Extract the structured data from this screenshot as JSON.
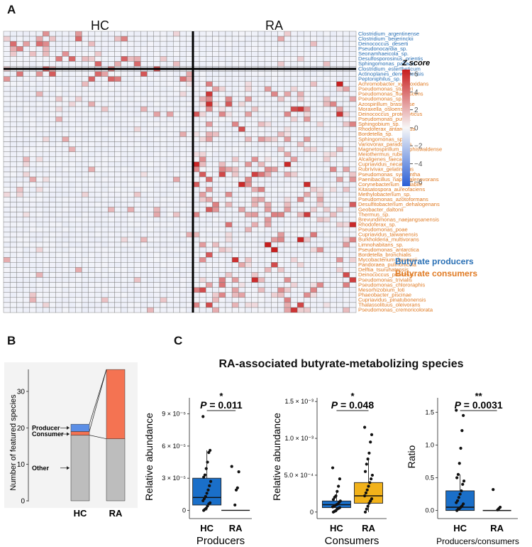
{
  "panel_a": {
    "letter": "A",
    "group_hc": "HC",
    "group_ra": "RA",
    "producers": [
      "Clostridium_argentinense",
      "Clostridium_beijerinckii",
      "Deinococcus_deserti",
      "Pseudonocardia_sp.",
      "Seonamhaeicola_sp.",
      "Desulfosporosinus_orientis",
      "Sphingomonas_pallacis",
      "Clostridium_estertheticum",
      "Actinoplanes_derwentensis",
      "Peptoniphilus_sp."
    ],
    "consumers": [
      "Achromobacter_xylosoxidans",
      "Pseudomonas_stutzeri",
      "Pseudomonas_fluorescens",
      "Pseudomonas_sp.",
      "Azospirillum_brasilense",
      "Moraxella_osloensis",
      "Deinococcus_proteolyticus",
      "Pseudomonas_putida",
      "Sphingobium_sp.",
      "Rhodoferax_antarcticus",
      "Bordetella_sp.",
      "Sphingomonas_sp.",
      "Variovorax_paradoxus",
      "Magnetospirillum_gryphiswaldense",
      "Meiothermus_ruber",
      "Alcaligenes_faecalis",
      "Cupriavidus_necator",
      "Rubrivivax_gelatinosus",
      "Pseudomonas_synxantha",
      "Paenibacillus_naphthalenovorans",
      "Corynebacterium_variabile",
      "Kitasatospora_aureofaciens",
      "Methylobacterium_sp.",
      "Pseudomonas_azotoformans",
      "Desulfitobacterium_dehalogenans",
      "Geobacter_daltonii",
      "Thermus_sp.",
      "Brevundimonas_naejangsanensis",
      "Rhodoferax_sp.",
      "Pseudomonas_poae",
      "Cupriavidus_taiwanensis",
      "Burkholderia_multivorans",
      "Limnohabitans_sp.",
      "Pseudomonas_antarctica",
      "Bordetella_bronchialis",
      "Mycobacterium_kansasii",
      "Pandoraea_pulmonicola",
      "Delftia_tsuruhatensis",
      "Deinococcus_puniceus",
      "Pseudomonas_trivialis",
      "Pseudomonas_chlororaphis",
      "Mesorhizobium_loti",
      "Phaeobacter_piscinae",
      "Cupriavidus_pinatubonensis",
      "Thalassolituus_oleivorans",
      "Pseudomonas_cremoricolorata"
    ],
    "n_hc_samples": 29,
    "n_ra_samples": 25,
    "legend_title": "Z score",
    "scale_ticks": [
      "6",
      "4",
      "2",
      "0",
      "−2",
      "−4",
      "−6"
    ],
    "legend_producers": "Butyrate producers",
    "legend_consumers": "Butyrate consumers",
    "colors": {
      "producer": "#2a70b5",
      "consumer": "#e07a22",
      "high": "#c81e1e",
      "low": "#2a5fd6",
      "grid": "#7d7d7d"
    }
  },
  "panel_b": {
    "letter": "B",
    "ylabel": "Number of featured species",
    "label_producer": "Producer",
    "label_consumer": "Consumer",
    "label_other": "Other",
    "chart_data": {
      "type": "bar",
      "stacked": true,
      "categories": [
        "HC",
        "RA"
      ],
      "series": [
        {
          "name": "Other",
          "values": [
            18,
            17
          ],
          "color": "#bdbdbd"
        },
        {
          "name": "Consumer",
          "values": [
            1,
            19
          ],
          "color": "#f47352"
        },
        {
          "name": "Producer",
          "values": [
            2,
            0
          ],
          "color": "#5b8ee6"
        }
      ],
      "ylim": [
        0,
        37
      ],
      "yticks": [
        0,
        10,
        20,
        30
      ]
    }
  },
  "panel_c": {
    "letter": "C",
    "title": "RA-associated butyrate-metabolizing species",
    "charts": [
      {
        "xlabel": "Producers",
        "ylabel": "Relative abundance",
        "p_text": "P = 0.011",
        "p_value": "0.011",
        "stars": "*",
        "tick_labels": [
          "0",
          "3 × 10⁻⁵",
          "6 × 10⁻⁵",
          "9 × 10⁻⁵"
        ],
        "chart_data": {
          "type": "box",
          "categories": [
            "HC",
            "RA"
          ],
          "ylim": [
            -5e-06,
            0.000105
          ],
          "yticks": [
            0,
            3e-05,
            6e-05,
            9e-05
          ],
          "boxes": [
            {
              "q1": 5e-06,
              "median": 1.2e-05,
              "q3": 3e-05,
              "whisker_low": 0,
              "whisker_high": 5.6e-05,
              "points": [
                8.75e-05,
                5.6e-05,
                5.4e-05,
                4.5e-05,
                3.9e-05,
                3.3e-05,
                3.1e-05,
                2.7e-05,
                2.3e-05,
                1.9e-05,
                1.6e-05,
                1.3e-05,
                1.1e-05,
                9e-06,
                7e-06,
                6e-06,
                4e-06,
                2e-06,
                1e-06,
                0
              ],
              "color": "#1a6fc9"
            },
            {
              "q1": 0,
              "median": 0,
              "q3": 0,
              "whisker_low": 0,
              "whisker_high": 0,
              "points": [
                4.1e-05,
                3.6e-05,
                2.1e-05,
                1.9e-05,
                5e-06
              ],
              "color": "#1a6fc9"
            }
          ]
        }
      },
      {
        "xlabel": "Consumers",
        "ylabel": "Relative abundance",
        "p_text": "P = 0.048",
        "p_value": "0.048",
        "stars": "*",
        "tick_labels": [
          "0",
          "5.0 × 10⁻⁴",
          "1.0 × 10⁻³",
          "1.5 × 10⁻³"
        ],
        "chart_data": {
          "type": "box",
          "categories": [
            "HC",
            "RA"
          ],
          "ylim": [
            -5e-05,
            0.00155
          ],
          "yticks": [
            0,
            0.0005,
            0.001,
            0.0015
          ],
          "boxes": [
            {
              "q1": 6e-05,
              "median": 0.0001,
              "q3": 0.00015,
              "whisker_low": 0,
              "whisker_high": 0.00028,
              "points": [
                0.0006,
                0.00045,
                0.00035,
                0.00028,
                0.00022,
                0.0002,
                0.00017,
                0.00015,
                0.00013,
                0.00011,
                0.0001,
                9e-05,
                8e-05,
                7e-05,
                6e-05,
                5e-05,
                4e-05,
                2e-05,
                1e-05,
                0
              ],
              "color": "#1a6fc9"
            },
            {
              "q1": 0.00012,
              "median": 0.00022,
              "q3": 0.0004,
              "whisker_low": 0,
              "whisker_high": 0.00072,
              "points": [
                0.00115,
                0.00105,
                0.00095,
                0.0008,
                0.00072,
                0.00065,
                0.00055,
                0.0005,
                0.00045,
                0.0004,
                0.00035,
                0.0003,
                0.00026,
                0.00022,
                0.00018,
                0.00015,
                0.00012,
                8e-05,
                4e-05,
                0
              ],
              "color": "#f2b21a"
            }
          ]
        }
      },
      {
        "xlabel": "Producers/consumers",
        "ylabel": "Ratio",
        "p_text": "P = 0.0031",
        "p_value": "0.0031",
        "stars": "**",
        "tick_labels": [
          "0.0",
          "0.5",
          "1.0",
          "1.5"
        ],
        "chart_data": {
          "type": "box",
          "categories": [
            "HC",
            "RA"
          ],
          "ylim": [
            -0.08,
            1.72
          ],
          "yticks": [
            0,
            0.5,
            1.0,
            1.5
          ],
          "boxes": [
            {
              "q1": 0,
              "median": 0.05,
              "q3": 0.3,
              "whisker_low": 0,
              "whisker_high": 0.55,
              "points": [
                1.53,
                1.45,
                1.22,
                0.95,
                0.72,
                0.55,
                0.5,
                0.45,
                0.4,
                0.3,
                0.25,
                0.2,
                0.15,
                0.12,
                0.1,
                0.07,
                0.05,
                0.03,
                0.02,
                0
              ],
              "color": "#1a6fc9"
            },
            {
              "q1": 0,
              "median": 0,
              "q3": 0,
              "whisker_low": 0,
              "whisker_high": 0,
              "points": [
                0.32,
                0.05,
                0.03,
                0.01
              ],
              "color": "#1a6fc9"
            }
          ]
        }
      }
    ]
  }
}
